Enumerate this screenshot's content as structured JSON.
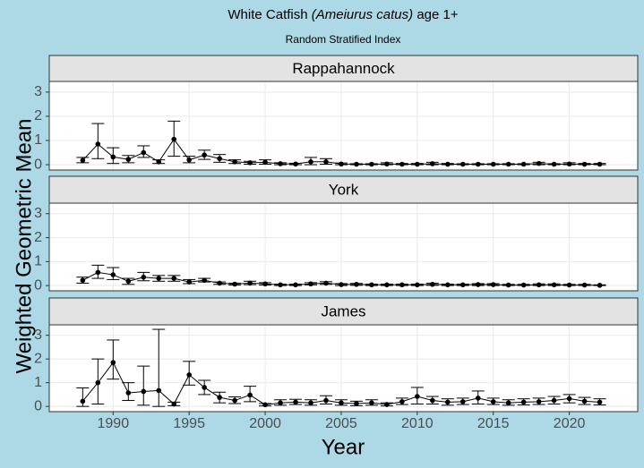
{
  "chart_data": {
    "type": "line",
    "title": [
      "White Catfish",
      "(Ameiurus catus)",
      "age 1+"
    ],
    "subtitle": "Random Stratified Index",
    "x_label": "Year",
    "y_label": "Weighted Geometric Mean",
    "x": [
      1988,
      1989,
      1990,
      1991,
      1992,
      1993,
      1994,
      1995,
      1996,
      1997,
      1998,
      1999,
      2000,
      2001,
      2002,
      2003,
      2004,
      2005,
      2006,
      2007,
      2008,
      2009,
      2010,
      2011,
      2012,
      2013,
      2014,
      2015,
      2016,
      2017,
      2018,
      2019,
      2020,
      2021,
      2022
    ],
    "xlim": [
      1985.8,
      2024.5
    ],
    "xticks": [
      1990,
      1995,
      2000,
      2005,
      2010,
      2015,
      2020
    ],
    "ylim": [
      -0.22,
      3.44
    ],
    "yticks": [
      0,
      1,
      2,
      3
    ],
    "color": "#000000",
    "grid": true,
    "panels": [
      {
        "name": "Rappahannock",
        "values": [
          0.18,
          0.85,
          0.32,
          0.22,
          0.5,
          0.12,
          1.05,
          0.2,
          0.4,
          0.25,
          0.12,
          0.08,
          0.1,
          0.04,
          0.03,
          0.12,
          0.12,
          0.03,
          0.02,
          0.02,
          0.03,
          0.02,
          0.02,
          0.04,
          0.02,
          0.02,
          0.02,
          0.02,
          0.02,
          0.02,
          0.05,
          0.02,
          0.03,
          0.02,
          0.02
        ],
        "lower": [
          0.08,
          0.25,
          0.05,
          0.08,
          0.3,
          0.05,
          0.35,
          0.08,
          0.22,
          0.1,
          0.05,
          0.02,
          0.02,
          0,
          0,
          0,
          0.02,
          0,
          0,
          0,
          0,
          0,
          0,
          0,
          0,
          0,
          0,
          0,
          0,
          0,
          0,
          0,
          0,
          0,
          0
        ],
        "upper": [
          0.3,
          1.7,
          0.7,
          0.38,
          0.78,
          0.2,
          1.8,
          0.35,
          0.6,
          0.42,
          0.2,
          0.14,
          0.2,
          0.08,
          0.06,
          0.3,
          0.25,
          0.07,
          0.04,
          0.04,
          0.08,
          0.05,
          0.05,
          0.1,
          0.05,
          0.04,
          0.04,
          0.04,
          0.04,
          0.04,
          0.1,
          0.04,
          0.08,
          0.05,
          0.05
        ]
      },
      {
        "name": "York",
        "values": [
          0.22,
          0.55,
          0.45,
          0.18,
          0.35,
          0.3,
          0.3,
          0.15,
          0.22,
          0.1,
          0.06,
          0.1,
          0.07,
          0.03,
          0.03,
          0.07,
          0.1,
          0.04,
          0.05,
          0.03,
          0.03,
          0.03,
          0.03,
          0.05,
          0.03,
          0.03,
          0.04,
          0.04,
          0.02,
          0.02,
          0.03,
          0.03,
          0.02,
          0.02,
          0.01
        ],
        "lower": [
          0.1,
          0.3,
          0.25,
          0.05,
          0.2,
          0.18,
          0.18,
          0.08,
          0.15,
          0.05,
          0.02,
          0.04,
          0.02,
          0,
          0,
          0.03,
          0.05,
          0,
          0.01,
          0,
          0,
          0,
          0,
          0.01,
          0,
          0,
          0,
          0,
          0,
          0,
          0,
          0,
          0,
          0,
          0
        ],
        "upper": [
          0.35,
          0.85,
          0.75,
          0.3,
          0.55,
          0.42,
          0.42,
          0.25,
          0.3,
          0.15,
          0.1,
          0.18,
          0.12,
          0.06,
          0.06,
          0.12,
          0.16,
          0.08,
          0.09,
          0.06,
          0.06,
          0.06,
          0.06,
          0.1,
          0.06,
          0.06,
          0.08,
          0.08,
          0.05,
          0.05,
          0.07,
          0.07,
          0.05,
          0.05,
          0.03
        ]
      },
      {
        "name": "James",
        "values": [
          0.22,
          1.0,
          1.85,
          0.57,
          0.63,
          0.67,
          0.1,
          1.33,
          0.8,
          0.38,
          0.25,
          0.48,
          0.07,
          0.15,
          0.18,
          0.15,
          0.25,
          0.15,
          0.12,
          0.15,
          0.08,
          0.2,
          0.42,
          0.25,
          0.18,
          0.2,
          0.35,
          0.2,
          0.15,
          0.18,
          0.2,
          0.25,
          0.33,
          0.22,
          0.18
        ],
        "lower": [
          0,
          0.1,
          1.15,
          0.25,
          0.05,
          0,
          0.03,
          0.9,
          0.5,
          0.15,
          0.12,
          0.2,
          0.02,
          0.05,
          0.08,
          0.05,
          0.1,
          0.05,
          0.03,
          0.05,
          0.02,
          0.08,
          0.1,
          0.1,
          0.05,
          0.08,
          0.1,
          0.08,
          0.05,
          0.06,
          0.08,
          0.1,
          0.15,
          0.08,
          0.06
        ],
        "upper": [
          0.78,
          2.0,
          2.8,
          1.0,
          1.7,
          3.25,
          0.18,
          1.9,
          1.1,
          0.6,
          0.4,
          0.85,
          0.12,
          0.28,
          0.3,
          0.28,
          0.45,
          0.28,
          0.22,
          0.28,
          0.15,
          0.35,
          0.8,
          0.42,
          0.32,
          0.35,
          0.65,
          0.35,
          0.28,
          0.32,
          0.35,
          0.42,
          0.5,
          0.38,
          0.32
        ]
      }
    ]
  }
}
